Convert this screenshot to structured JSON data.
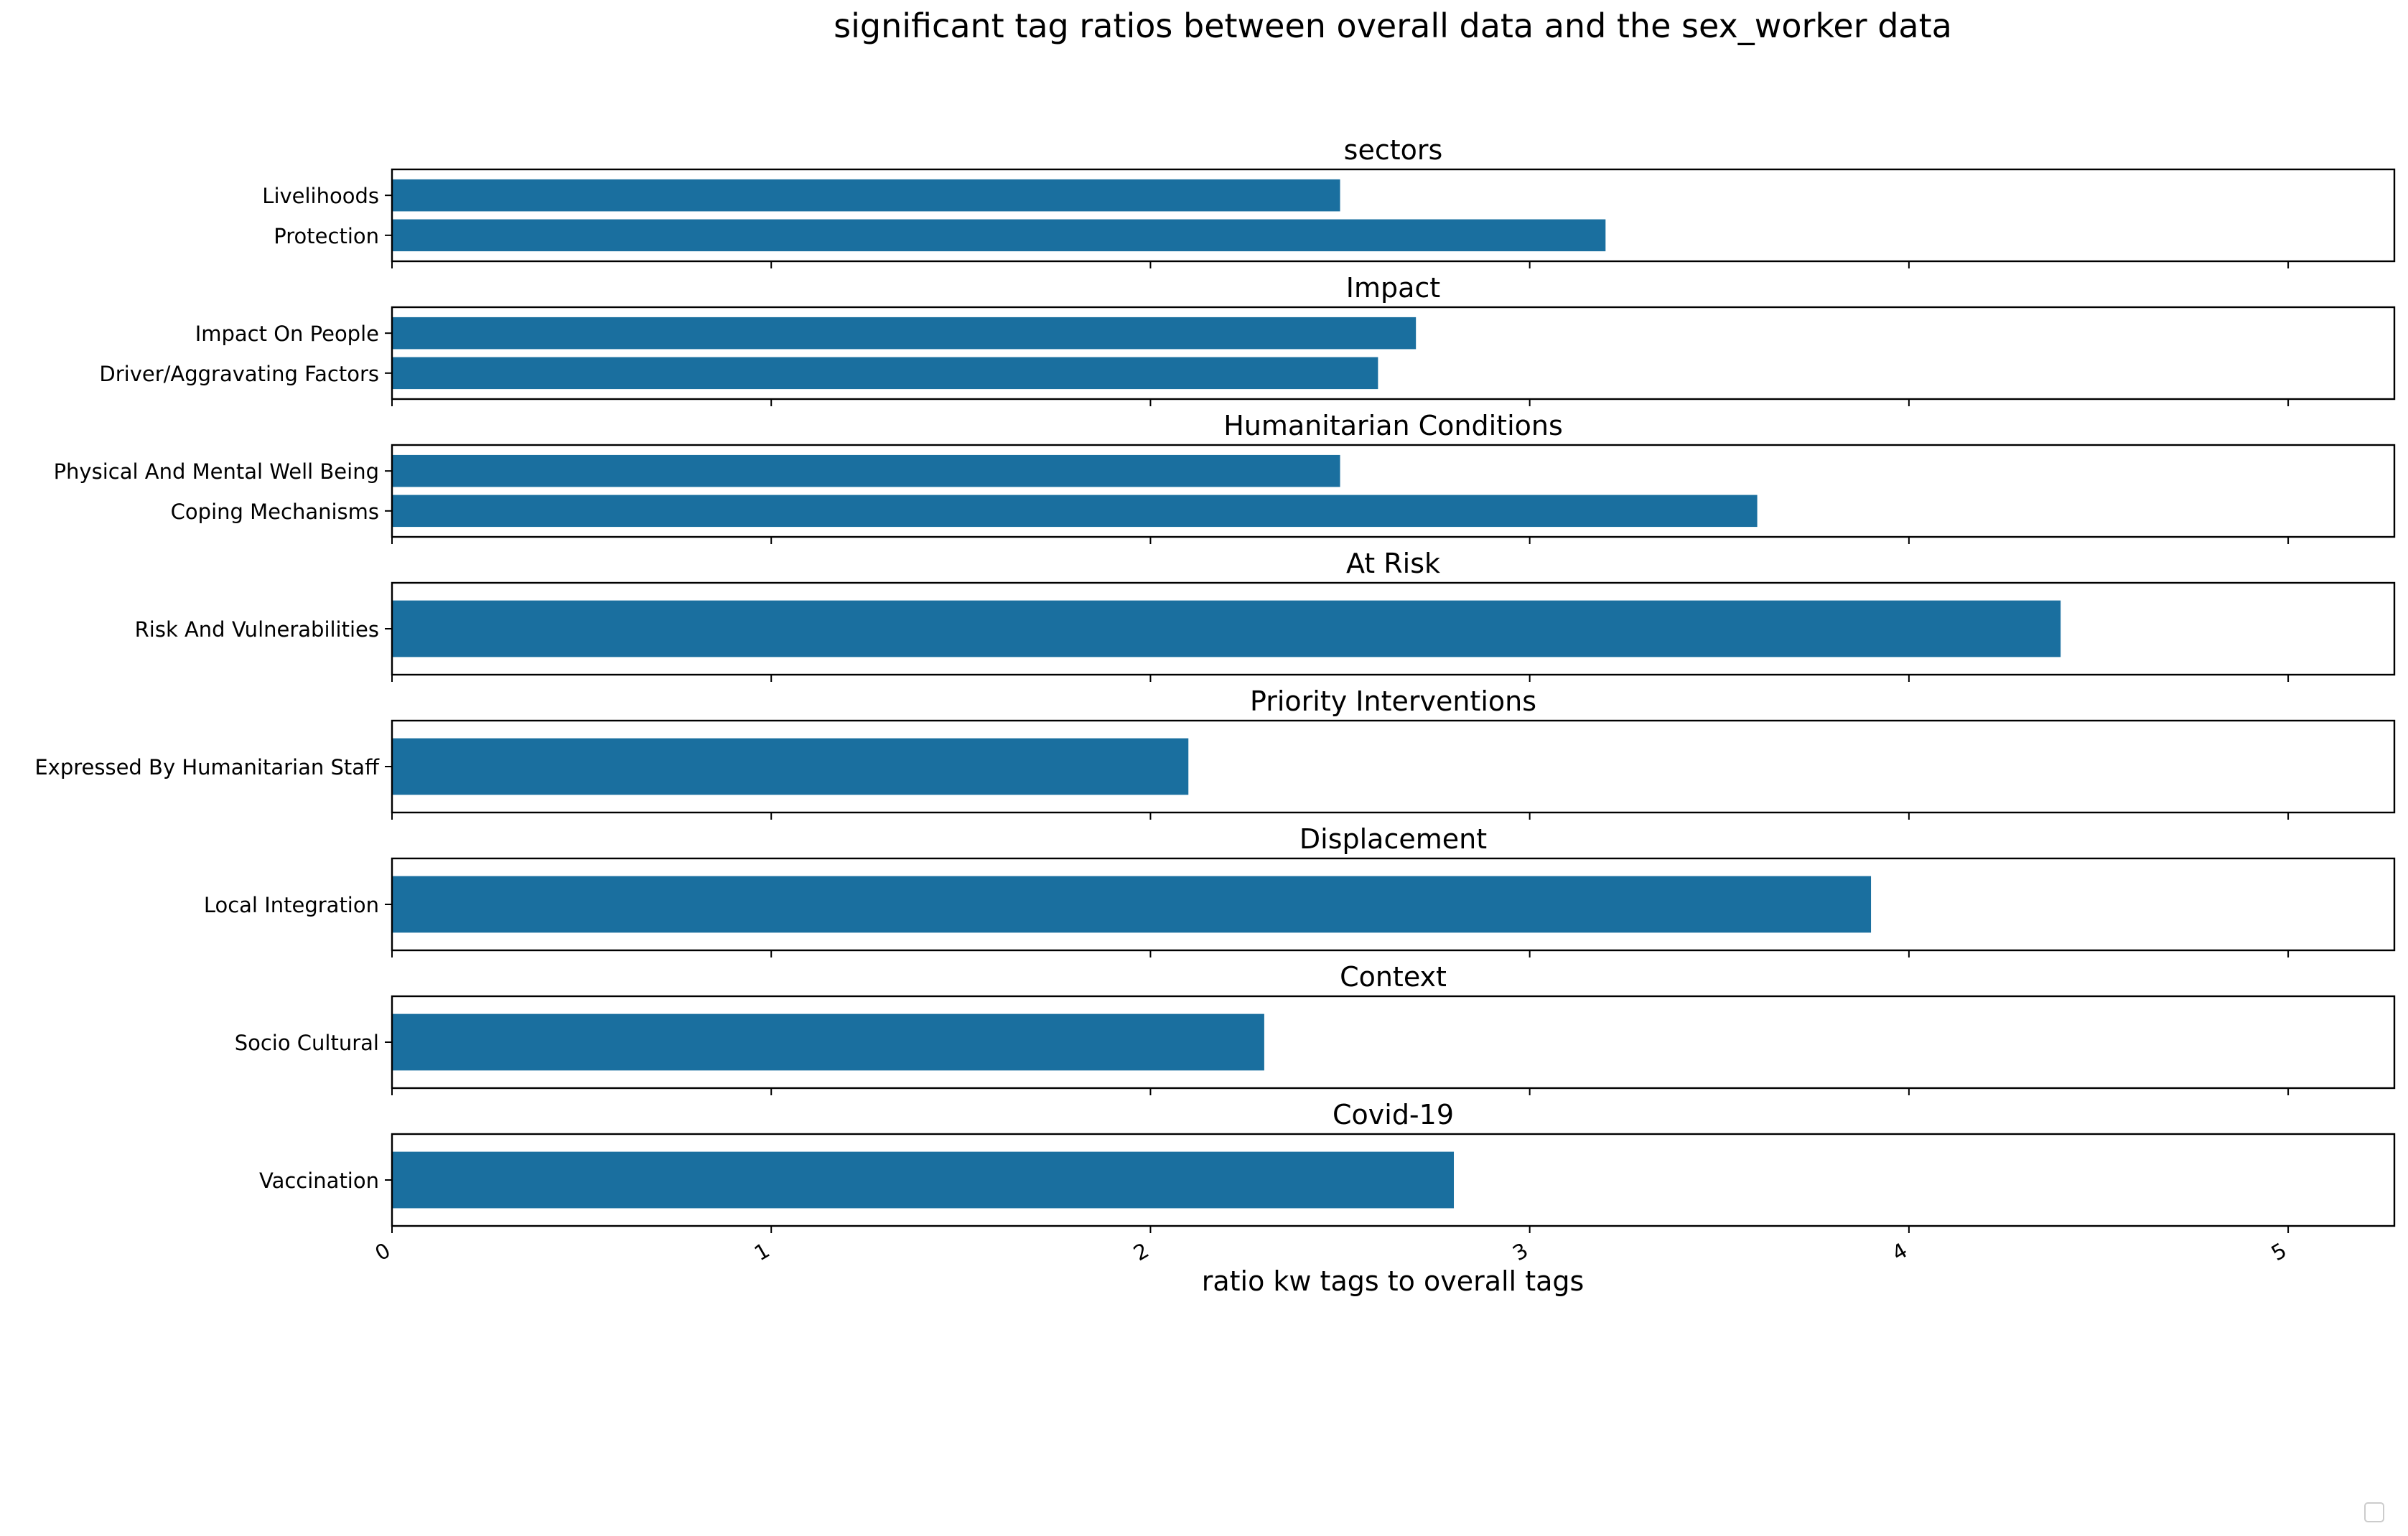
{
  "chart_data": {
    "type": "bar",
    "orientation": "horizontal",
    "title": "significant tag ratios between overall data and the sex_worker data",
    "xlabel": "ratio kw tags to overall tags",
    "xlim": [
      0,
      5.28
    ],
    "xticks": [
      "0",
      "1",
      "2",
      "3",
      "4",
      "5"
    ],
    "bar_color": "#1a6f9f",
    "grid": false,
    "legend": "lower-right, empty box",
    "panels": [
      {
        "title": "sectors",
        "categories": [
          "Livelihoods",
          "Protection"
        ],
        "values": [
          2.5,
          3.2
        ]
      },
      {
        "title": "Impact",
        "categories": [
          "Impact On People",
          "Driver/Aggravating Factors"
        ],
        "values": [
          2.7,
          2.6
        ]
      },
      {
        "title": "Humanitarian Conditions",
        "categories": [
          "Physical And Mental Well Being",
          "Coping Mechanisms"
        ],
        "values": [
          2.5,
          3.6
        ]
      },
      {
        "title": "At Risk",
        "categories": [
          "Risk And Vulnerabilities"
        ],
        "values": [
          4.4
        ]
      },
      {
        "title": "Priority Interventions",
        "categories": [
          "Expressed By Humanitarian Staff"
        ],
        "values": [
          2.1
        ]
      },
      {
        "title": "Displacement",
        "categories": [
          "Local Integration"
        ],
        "values": [
          3.9
        ]
      },
      {
        "title": "Context",
        "categories": [
          "Socio Cultural"
        ],
        "values": [
          2.3
        ]
      },
      {
        "title": "Covid-19",
        "categories": [
          "Vaccination"
        ],
        "values": [
          2.8
        ]
      }
    ]
  }
}
